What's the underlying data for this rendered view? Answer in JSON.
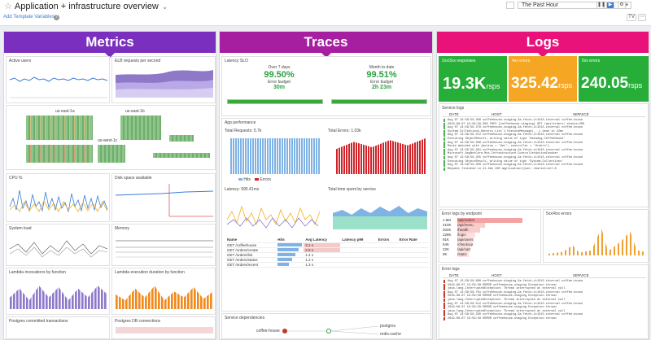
{
  "header": {
    "title": "Application + infrastructure overview",
    "add_variables": "Add Template Variables",
    "help": "?",
    "time_range": "The Past Hour",
    "tv_label": "TV",
    "edit_label": "⋯"
  },
  "metrics": {
    "banner": "Metrics",
    "color": "#7b2fbe",
    "widgets": {
      "active_users": "Active users",
      "elb_requests": "ELB requests per second",
      "hostmap_label1": "us-east-1a",
      "hostmap_label2": "us-east-1b",
      "hostmap_label3": "us-west-1c",
      "cpu": "CPU %",
      "disk": "Disk space available",
      "system_load": "System load",
      "memory": "Memory",
      "lambda_invocations": "Lambda invocations by function",
      "lambda_duration": "Lambda execution duration by function",
      "pg_tx": "Postgres committed transactions",
      "pg_conn": "Postgres DB connections"
    }
  },
  "traces": {
    "banner": "Traces",
    "color": "#a51fa0",
    "latency_slo": "Latency SLO",
    "slo1": {
      "label": "Over 7 days",
      "pct": "99.50%",
      "budget_label": "Error budget",
      "budget": "30m"
    },
    "slo2": {
      "label": "Month to date",
      "pct": "99.51%",
      "budget_label": "Error budget",
      "budget": "2h 23m"
    },
    "app_perf": "App performance",
    "total_requests": "Total Requests: 5.7k",
    "total_errors": "Total Errors: 1.03k",
    "latency": "Latency: 995.41ms",
    "time_spent": "Total time spent by service",
    "legend_hits": "Hits",
    "legend_errors": "Errors",
    "table_headers": [
      "Name",
      "Hits",
      "Avg Latency",
      "Latency p99",
      "Errors",
      "Error Rate"
    ],
    "table_rows": [
      [
        "GET /coffeehouse",
        "",
        "3.1 s",
        "",
        "",
        ""
      ],
      [
        "GET /orders/create",
        "",
        "2.9 s",
        "",
        "",
        ""
      ],
      [
        "GET /orders/list",
        "",
        "1.4 s",
        "",
        "",
        ""
      ],
      [
        "GET /orders/status",
        "",
        "1.2 s",
        "",
        "",
        ""
      ],
      [
        "GET /orders/recent",
        "",
        "1.3 s",
        "",
        "",
        ""
      ]
    ],
    "service_deps": "Service dependencies",
    "node1": "coffee-house",
    "node2": "postgres",
    "node3": "redis-cache"
  },
  "logs": {
    "banner": "Logs",
    "color": "#e8127a",
    "tiles": [
      {
        "title": "2xx/3xx responses",
        "value": "19.3K",
        "unit": "rsps",
        "color": "#27ae38"
      },
      {
        "title": "4xx errors",
        "value": "325.42",
        "unit": "rsps",
        "color": "#f5a623"
      },
      {
        "title": "5xx errors",
        "value": "240.05",
        "unit": "rsps",
        "color": "#27ae38"
      }
    ],
    "service_logs": "Service logs",
    "log_headers": [
      "DATE",
      "HOST",
      "SERVICE"
    ],
    "log_lines": [
      "Aug 07 13:59:59.380  coffeehouse-staging-2a.fetch-it1515.internal  coffee-house",
      "2019-08-07 13:59:59.380 INFO  [coffeehouse-staging] GET /api/orders/  status=200",
      "Aug 07 13:59:59.376  coffeehouse-staging-2a.fetch-it1515.internal  coffee-house",
      "System.Collections.Generic.List`1 ExecuteMessage(...) done in 22ms",
      "Aug 07 13:59:59.372  coffeehouse-staging-2a.fetch-it1515.internal  coffee-house",
      "Executing ObjectResult, writing value of type 'Datadog.CoffeeHouse'",
      "Aug 07 13:59:59.366  coffeehouse-staging-2a.fetch-it1515.internal  coffee-house",
      "Route matched with {action = 'Get', controller = 'Orders'}",
      "Aug 07 13:59:59.361  coffeehouse-staging-2a.fetch-it1515.internal  coffee-house",
      "Microsoft.AspNetCore.Mvc.Infrastructure.ControllerActionInvoker",
      "Aug 07 13:59:59.355  coffeehouse-staging-2a.fetch-it1515.internal  coffee-house",
      "Executing ObjectResult, writing value of type 'System.Collections'",
      "Aug 07 13:59:59.350  coffeehouse-staging-2a.fetch-it1515.internal  coffee-house",
      "Request finished in 41.2ms 200 application/json; charset=utf-8"
    ],
    "errors_by_endpoint": "Error logs by endpoint",
    "endpoints": [
      {
        "count": "1.8M",
        "name": "/api/orders"
      },
      {
        "count": "410K",
        "name": "/api/menu"
      },
      {
        "count": "302K",
        "name": "/health"
      },
      {
        "count": "128K",
        "name": "/login"
      },
      {
        "count": "91K",
        "name": "/api/users"
      },
      {
        "count": "54K",
        "name": "/checkout"
      },
      {
        "count": "22K",
        "name": "/api/cart"
      },
      {
        "count": "9K",
        "name": "/static"
      }
    ],
    "fivexx": "5xx/4xx errors",
    "error_logs": "Error logs",
    "err_lines": [
      "Aug 07 13:59:58.880  coffeehouse-staging-2a.fetch-it1515.internal  coffee-house",
      "2019-08-07 13:59:58 ERROR coffeehouse-staging Exception thrown",
      "java.lang.InterruptedException: Thread interrupted  at external call",
      "Aug 07 13:59:58.701  coffeehouse-staging-2a.fetch-it1515.internal  coffee-house",
      "2019-08-07 13:59:58 ERROR coffeehouse-staging Exception thrown",
      "java.lang.InterruptedException: Thread interrupted  at external call",
      "Aug 07 13:59:58.512  coffeehouse-staging-2a.fetch-it1515.internal  coffee-house",
      "2019-08-07 13:59:58 ERROR coffeehouse-staging Exception thrown",
      "java.lang.InterruptedException: Thread interrupted  at external call",
      "Aug 07 13:59:58.330  coffeehouse-staging-2a.fetch-it1515.internal  coffee-house",
      "2019-08-07 13:59:58 ERROR coffeehouse-staging Exception thrown"
    ]
  }
}
